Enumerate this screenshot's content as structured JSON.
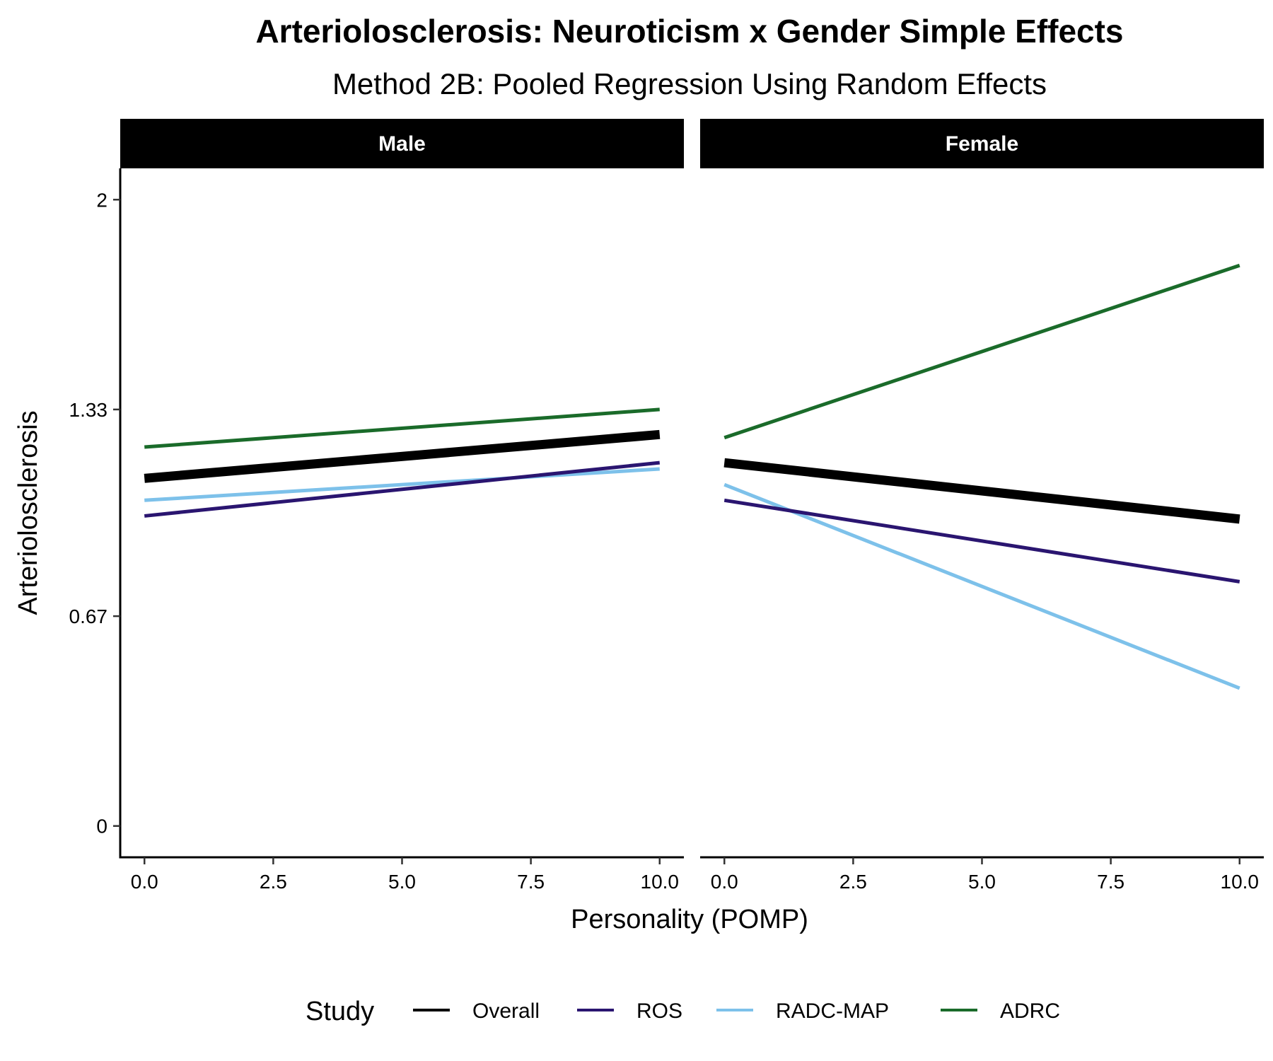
{
  "chart_data": {
    "type": "line",
    "title": "Arteriolosclerosis: Neuroticism x Gender Simple Effects",
    "subtitle": "Method 2B: Pooled Regression Using Random Effects",
    "xlabel": "Personality (POMP)",
    "ylabel": "Arteriolosclerosis",
    "xlim": [
      -0.47,
      10.47
    ],
    "ylim": [
      -0.1,
      2.1
    ],
    "x_ticks": [
      0,
      2.5,
      5,
      7.5,
      10
    ],
    "x_tick_labels": [
      "0.0",
      "2.5",
      "5.0",
      "7.5",
      "10.0"
    ],
    "y_ticks": [
      0,
      0.67,
      1.33,
      2
    ],
    "y_tick_labels": [
      "0",
      "0.67",
      "1.33",
      "2"
    ],
    "grid": false,
    "legend": {
      "title": "Study",
      "position": "bottom",
      "entries": [
        "Overall",
        "ROS",
        "RADC-MAP",
        "ADRC"
      ]
    },
    "colors": {
      "Overall": "#000000",
      "ROS": "#2a1570",
      "RADC-MAP": "#7dc1ea",
      "ADRC": "#1a6b2a"
    },
    "panels": [
      {
        "label": "Male",
        "series": [
          {
            "name": "Overall",
            "x": [
              0,
              10
            ],
            "y": [
              1.11,
              1.25
            ]
          },
          {
            "name": "ROS",
            "x": [
              0,
              10
            ],
            "y": [
              0.99,
              1.16
            ]
          },
          {
            "name": "RADC-MAP",
            "x": [
              0,
              10
            ],
            "y": [
              1.04,
              1.14
            ]
          },
          {
            "name": "ADRC",
            "x": [
              0,
              10
            ],
            "y": [
              1.21,
              1.33
            ]
          }
        ]
      },
      {
        "label": "Female",
        "series": [
          {
            "name": "Overall",
            "x": [
              0,
              10
            ],
            "y": [
              1.16,
              0.98
            ]
          },
          {
            "name": "ROS",
            "x": [
              0,
              10
            ],
            "y": [
              1.04,
              0.78
            ]
          },
          {
            "name": "RADC-MAP",
            "x": [
              0,
              10
            ],
            "y": [
              1.09,
              0.44
            ]
          },
          {
            "name": "ADRC",
            "x": [
              0,
              10
            ],
            "y": [
              1.24,
              1.79
            ]
          }
        ]
      }
    ]
  }
}
